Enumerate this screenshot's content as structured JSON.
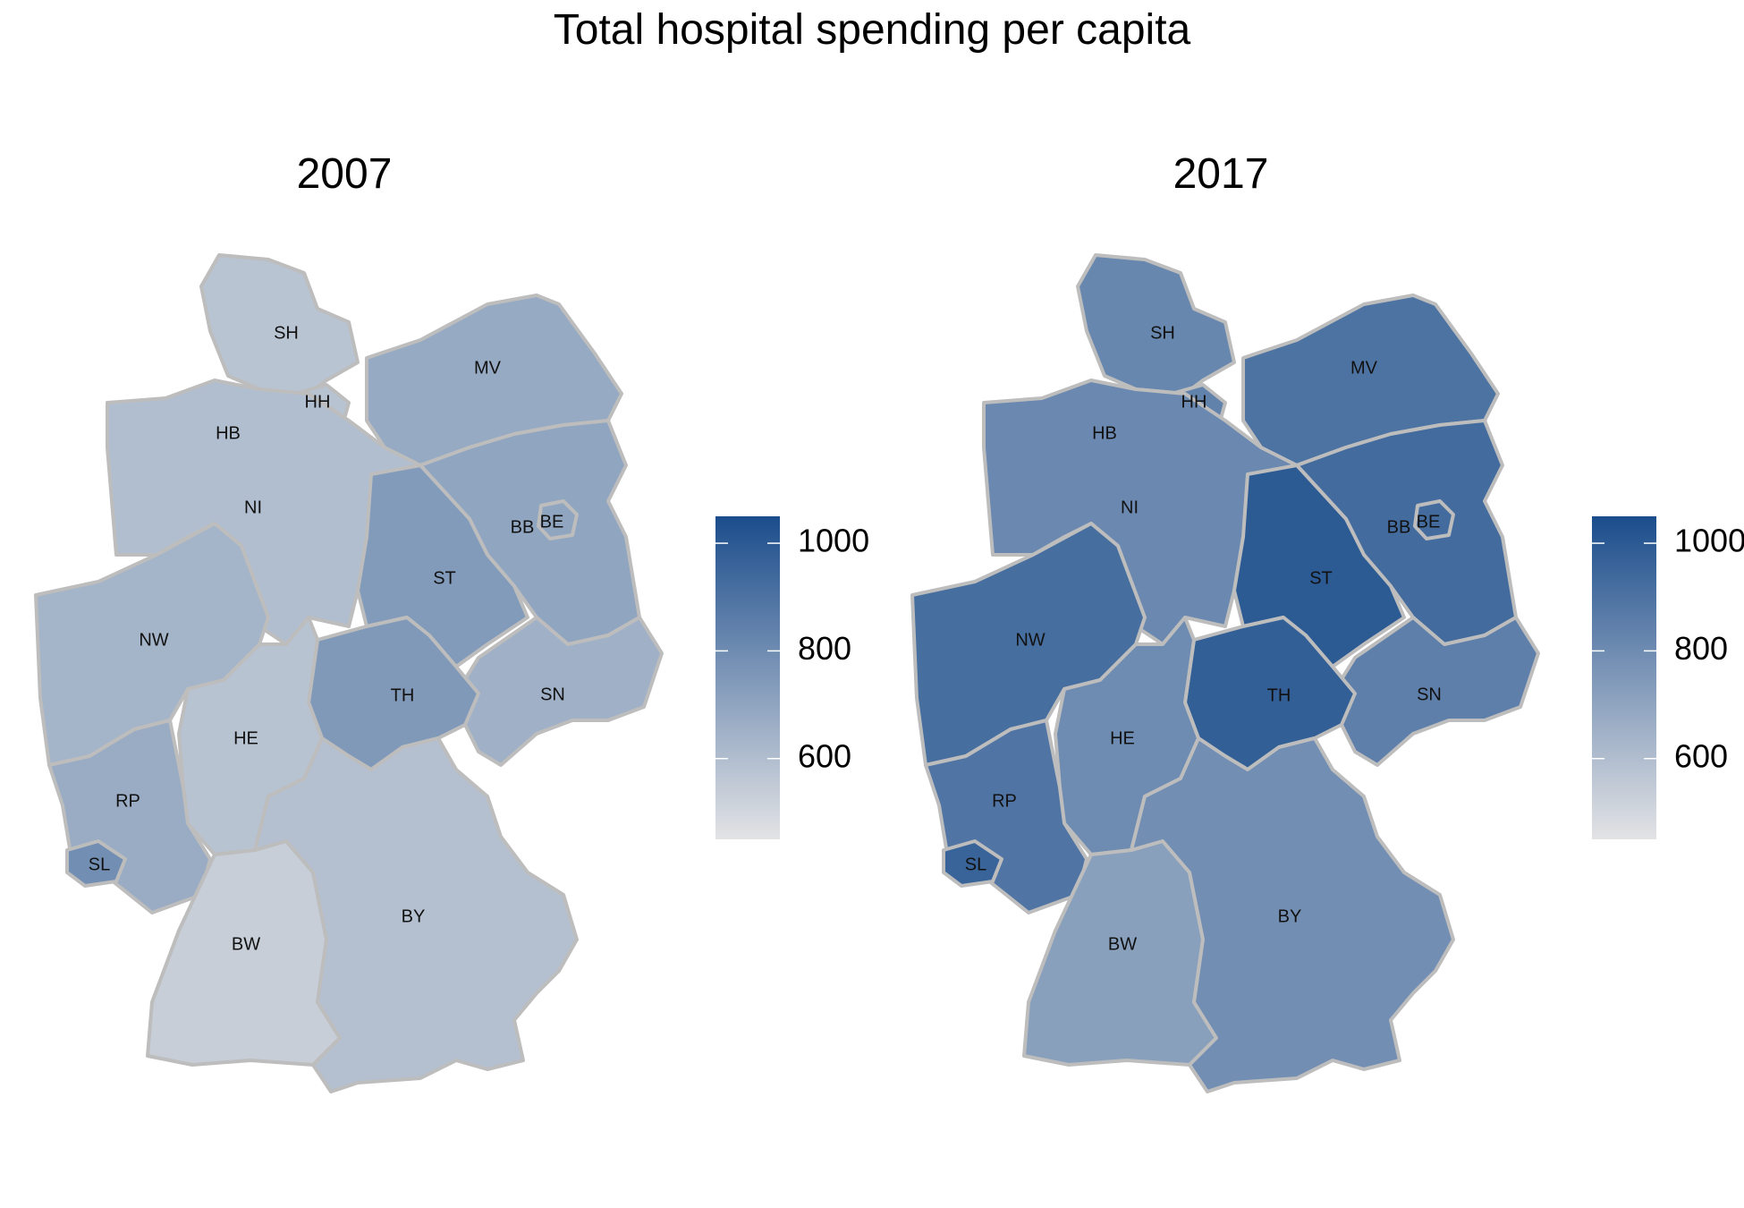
{
  "title": "Total hospital spending per capita",
  "color_scale": {
    "low": "#e3e3e5",
    "high": "#1b4d8c",
    "min": 450,
    "max": 1050
  },
  "legend": {
    "ticks": [
      1000,
      800,
      600
    ]
  },
  "panels": [
    {
      "label": "2007",
      "values": {
        "SH": 575,
        "HH": 580,
        "HB": 605,
        "NI": 600,
        "MV": 680,
        "BB": 700,
        "BE": 700,
        "ST": 740,
        "SN": 650,
        "TH": 745,
        "NW": 640,
        "HE": 580,
        "RP": 670,
        "SL": 790,
        "BW": 535,
        "BY": 590
      }
    },
    {
      "label": "2017",
      "values": {
        "SH": 820,
        "HH": 840,
        "HB": 820,
        "NI": 810,
        "MV": 900,
        "BB": 930,
        "BE": 930,
        "ST": 1000,
        "SN": 850,
        "TH": 980,
        "NW": 920,
        "HE": 800,
        "RP": 890,
        "SL": 960,
        "BW": 720,
        "BY": 790
      }
    }
  ],
  "states": [
    "SH",
    "HH",
    "HB",
    "NI",
    "MV",
    "BB",
    "BE",
    "ST",
    "SN",
    "TH",
    "NW",
    "HE",
    "RP",
    "SL",
    "BW",
    "BY"
  ]
}
